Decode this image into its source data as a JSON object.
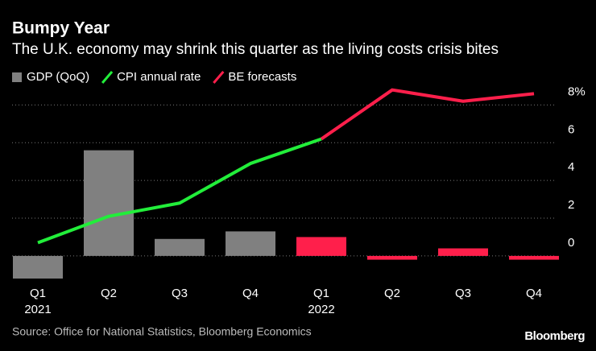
{
  "chart_data": {
    "type": "bar-line",
    "title": "Bumpy Year",
    "subtitle": "The U.K. economy may shrink this quarter as the living costs crisis bites",
    "source": "Source: Office for National Statistics, Bloomberg Economics",
    "brand": "Bloomberg",
    "categories": [
      [
        "Q1",
        "2021"
      ],
      [
        "Q2"
      ],
      [
        "Q3"
      ],
      [
        "Q4"
      ],
      [
        "Q1",
        "2022"
      ],
      [
        "Q2"
      ],
      [
        "Q3"
      ],
      [
        "Q4"
      ]
    ],
    "series": [
      {
        "name": "GDP (QoQ)",
        "type": "bar",
        "color": "#808080",
        "colors": [
          "#808080",
          "#808080",
          "#808080",
          "#808080",
          "#ff1f4b",
          "#ff1f4b",
          "#ff1f4b",
          "#ff1f4b"
        ],
        "values": [
          -1.2,
          5.6,
          0.9,
          1.3,
          1.0,
          -0.2,
          0.4,
          -0.2
        ]
      },
      {
        "name": "CPI annual rate",
        "type": "line",
        "color": "#22ee3a",
        "values": [
          0.7,
          2.1,
          2.8,
          4.9,
          6.2,
          null,
          null,
          null
        ]
      },
      {
        "name": "BE forecasts",
        "type": "line",
        "color": "#ff1f4b",
        "values": [
          null,
          null,
          null,
          null,
          6.2,
          8.8,
          8.2,
          8.6
        ]
      }
    ],
    "ylim": [
      -1.2,
      9.0
    ],
    "yticks": [
      0,
      2,
      4,
      6,
      {
        "value": 8,
        "label": "8%"
      }
    ],
    "grid": true
  }
}
